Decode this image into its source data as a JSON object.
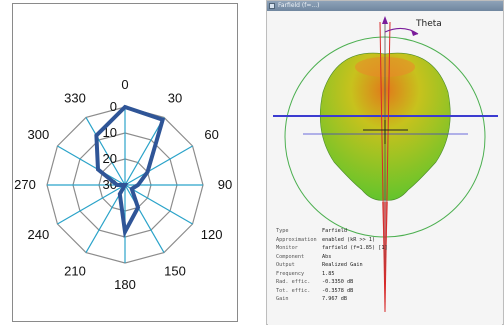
{
  "radar": {
    "angle_labels": [
      "0",
      "30",
      "60",
      "90",
      "120",
      "150",
      "180",
      "210",
      "240",
      "270",
      "300",
      "330"
    ],
    "ring_labels": [
      "0",
      "10",
      "20",
      "30"
    ],
    "colors": {
      "series": "#2f5597",
      "spokes": "#2aa3c9",
      "grid": "#8c8c8c"
    }
  },
  "chart_data": {
    "type": "radar",
    "title": "",
    "categories": [
      "0",
      "30",
      "60",
      "90",
      "120",
      "150",
      "180",
      "210",
      "240",
      "270",
      "300",
      "330"
    ],
    "radial_axis": {
      "ticks": [
        0,
        10,
        20,
        30
      ],
      "reversed": true
    },
    "series": [
      {
        "values": [
          0,
          1,
          20,
          25,
          27,
          20,
          12,
          26,
          30,
          27,
          18,
          8
        ]
      }
    ]
  },
  "app": {
    "title": "Farfield (f=...)",
    "axis_label": "Theta",
    "colors": {
      "body_top": "#e07a1a",
      "body_mid": "#c7c21d",
      "body_low": "#63c42c",
      "axis_blue": "#3b3bd1",
      "axis_red": "#d72a2a"
    },
    "info_rows": [
      {
        "key": "Type",
        "value": "Farfield"
      },
      {
        "key": "Approximation",
        "value": "enabled (kR >> 1)"
      },
      {
        "key": "Monitor",
        "value": "farfield (f=1.85) [1]"
      },
      {
        "key": "Component",
        "value": "Abs"
      },
      {
        "key": "Output",
        "value": "Realized Gain"
      },
      {
        "key": "Frequency",
        "value": "1.85"
      },
      {
        "key": "Rad. effic.",
        "value": "-0.3350 dB"
      },
      {
        "key": "Tot. effic.",
        "value": "-0.3578 dB"
      },
      {
        "key": "Gain",
        "value": "7.967 dB"
      }
    ]
  }
}
